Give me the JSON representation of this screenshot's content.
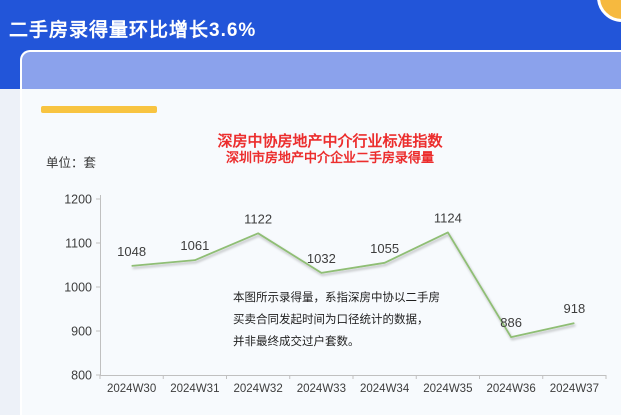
{
  "header": {
    "title": "二手房录得量环比增长3.6%"
  },
  "card": {
    "unit_label": "单位：套",
    "annotation": {
      "lines": [
        "本图所示录得量，系指深房中协以二手房",
        "买卖合同发起时间为口径统计的数据，",
        "并非最终成交过户套数。"
      ]
    }
  },
  "colors": {
    "header_blue": "#2255D9",
    "band_blue": "#8BA2EC",
    "accent_yellow": "#F8C441",
    "deco_circle_yellow": "#F6B93F",
    "title_red": "#EC2D2D",
    "line_green": "#8FBE74",
    "axis_gray": "#C0C0C0",
    "text_dark": "#3d3d3d",
    "card_bg": "#F7FAFD",
    "page_bg": "#EDF1F8"
  },
  "chart_data": {
    "type": "line",
    "title": "深房中协房地产中介行业标准指数",
    "subtitle": "深圳市房地产中介企业二手房录得量",
    "unit": "单位：套",
    "categories": [
      "2024W30",
      "2024W31",
      "2024W32",
      "2024W33",
      "2024W34",
      "2024W35",
      "2024W36",
      "2024W37"
    ],
    "values": [
      1048,
      1061,
      1122,
      1032,
      1055,
      1124,
      886,
      918
    ],
    "ylim": [
      800,
      1200
    ],
    "ytick_step": 100,
    "grid": false,
    "legend": "none",
    "data_labels": true,
    "line_color": "#8FBE74"
  }
}
